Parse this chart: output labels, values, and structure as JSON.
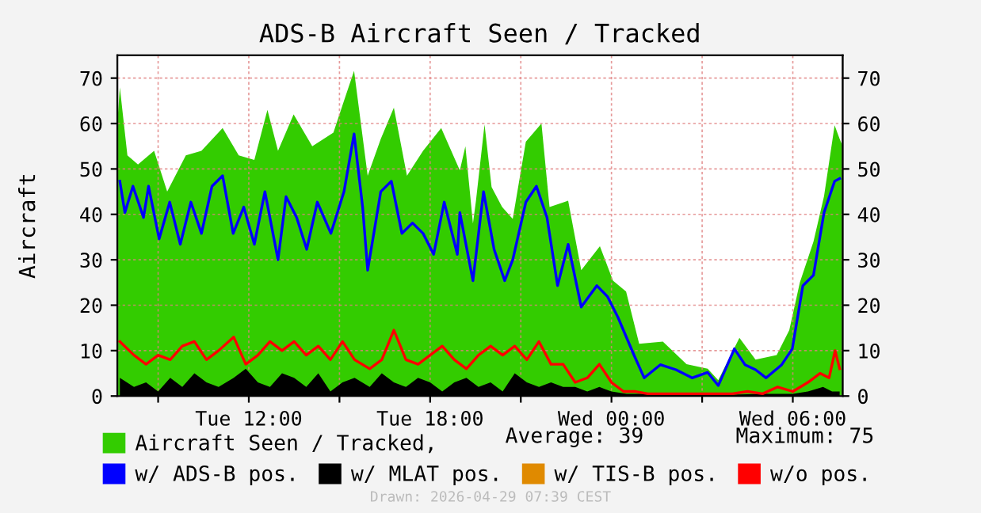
{
  "chart_data": {
    "type": "line",
    "title": "ADS-B Aircraft Seen / Tracked",
    "ylabel": "Aircraft",
    "xlim": [
      "2026-04-28T07:39",
      "2026-04-29T07:39"
    ],
    "ylim": [
      0,
      75
    ],
    "y2lim": [
      0,
      75
    ],
    "xticks": [
      {
        "value": "2026-04-28T09:00",
        "label": null
      },
      {
        "value": "2026-04-28T12:00",
        "label": "Tue 12:00"
      },
      {
        "value": "2026-04-28T15:00",
        "label": null
      },
      {
        "value": "2026-04-28T18:00",
        "label": "Tue 18:00"
      },
      {
        "value": "2026-04-28T21:00",
        "label": null
      },
      {
        "value": "2026-04-29T00:00",
        "label": "Wed 00:00"
      },
      {
        "value": "2026-04-29T03:00",
        "label": null
      },
      {
        "value": "2026-04-29T06:00",
        "label": "Wed 06:00"
      }
    ],
    "yticks": [
      0,
      10,
      20,
      30,
      40,
      50,
      60,
      70
    ],
    "y2ticks": [
      0,
      10,
      20,
      30,
      40,
      50,
      60,
      70
    ],
    "grid": true,
    "legend": "bottom",
    "annotations": [
      "Average: 39",
      "Maximum: 75",
      "Drawn: 2026-04-29 07:39 CEST"
    ],
    "series": [
      {
        "name": "Aircraft Seen / Tracked,",
        "type": "area",
        "color": "#33cc00",
        "x": [
          "2026-04-28T07:39",
          "2026-04-28T07:44",
          "2026-04-28T07:59",
          "2026-04-28T08:20",
          "2026-04-28T08:52",
          "2026-04-28T09:18",
          "2026-04-28T09:55",
          "2026-04-28T10:26",
          "2026-04-28T11:08",
          "2026-04-28T11:40",
          "2026-04-28T12:11",
          "2026-04-28T12:37",
          "2026-04-28T12:58",
          "2026-04-28T13:29",
          "2026-04-28T14:06",
          "2026-04-28T14:48",
          "2026-04-28T15:09",
          "2026-04-28T15:29",
          "2026-04-28T15:56",
          "2026-04-28T16:22",
          "2026-04-28T16:48",
          "2026-04-28T17:14",
          "2026-04-28T17:46",
          "2026-04-28T18:22",
          "2026-04-28T18:59",
          "2026-04-28T19:10",
          "2026-04-28T19:25",
          "2026-04-28T19:31",
          "2026-04-28T19:48",
          "2026-04-28T20:02",
          "2026-04-28T20:23",
          "2026-04-28T20:44",
          "2026-04-28T21:10",
          "2026-04-28T21:41",
          "2026-04-28T21:57",
          "2026-04-28T22:34",
          "2026-04-28T23:00",
          "2026-04-28T23:37",
          "2026-04-29T00:03",
          "2026-04-29T00:29",
          "2026-04-29T00:55",
          "2026-04-29T01:42",
          "2026-04-29T02:29",
          "2026-04-29T03:11",
          "2026-04-29T03:32",
          "2026-04-29T04:14",
          "2026-04-29T04:46",
          "2026-04-29T05:28",
          "2026-04-29T05:53",
          "2026-04-29T06:14",
          "2026-04-29T06:41",
          "2026-04-29T07:02",
          "2026-04-29T07:23",
          "2026-04-29T07:33",
          "2026-04-29T07:39"
        ],
        "values": [
          60,
          68,
          53,
          51,
          54,
          45,
          53,
          54,
          59,
          53,
          52,
          63,
          54,
          62,
          55,
          58,
          65,
          71.6,
          48.5,
          56.6,
          63.5,
          48.5,
          54,
          59,
          49.7,
          55,
          38,
          43,
          59.8,
          46,
          41.6,
          39,
          56,
          60,
          41.6,
          43,
          27.7,
          33,
          25.4,
          23,
          11.5,
          12,
          7,
          6,
          3.5,
          12.8,
          8,
          9,
          14.5,
          25,
          34,
          44,
          59.6,
          56.6,
          55
        ]
      },
      {
        "name": "w/ ADS-B pos.",
        "color": "#0000ff",
        "x": [
          "2026-04-28T07:44",
          "2026-04-28T07:54",
          "2026-04-28T08:10",
          "2026-04-28T08:31",
          "2026-04-28T08:41",
          "2026-04-28T09:02",
          "2026-04-28T09:23",
          "2026-04-28T09:44",
          "2026-04-28T10:05",
          "2026-04-28T10:26",
          "2026-04-28T10:47",
          "2026-04-28T11:08",
          "2026-04-28T11:29",
          "2026-04-28T11:50",
          "2026-04-28T12:11",
          "2026-04-28T12:32",
          "2026-04-28T12:58",
          "2026-04-28T13:14",
          "2026-04-28T13:35",
          "2026-04-28T13:55",
          "2026-04-28T14:16",
          "2026-04-28T14:43",
          "2026-04-28T15:09",
          "2026-04-28T15:29",
          "2026-04-28T15:46",
          "2026-04-28T15:56",
          "2026-04-28T16:22",
          "2026-04-28T16:43",
          "2026-04-28T17:04",
          "2026-04-28T17:25",
          "2026-04-28T17:46",
          "2026-04-28T18:07",
          "2026-04-28T18:28",
          "2026-04-28T18:54",
          "2026-04-28T18:59",
          "2026-04-28T19:25",
          "2026-04-28T19:46",
          "2026-04-28T20:07",
          "2026-04-28T20:28",
          "2026-04-28T20:44",
          "2026-04-28T21:10",
          "2026-04-28T21:31",
          "2026-04-28T21:52",
          "2026-04-28T22:13",
          "2026-04-28T22:34",
          "2026-04-28T23:00",
          "2026-04-28T23:31",
          "2026-04-28T23:52",
          "2026-04-29T00:13",
          "2026-04-29T00:44",
          "2026-04-29T01:05",
          "2026-04-29T01:37",
          "2026-04-29T02:08",
          "2026-04-29T02:40",
          "2026-04-29T03:11",
          "2026-04-29T03:32",
          "2026-04-29T04:04",
          "2026-04-29T04:25",
          "2026-04-29T04:46",
          "2026-04-29T05:07",
          "2026-04-29T05:38",
          "2026-04-29T05:59",
          "2026-04-29T06:20",
          "2026-04-29T06:41",
          "2026-04-29T07:02",
          "2026-04-29T07:23",
          "2026-04-29T07:33"
        ],
        "values": [
          47.3,
          40.4,
          46.2,
          39.3,
          46.2,
          34.6,
          42.7,
          33.4,
          42.7,
          35.8,
          46.2,
          48.5,
          35.8,
          41.6,
          33.4,
          45,
          30,
          43.9,
          39.3,
          32.3,
          42.7,
          35.8,
          45,
          57.7,
          41.6,
          27.7,
          45,
          47.3,
          35.8,
          38.1,
          35.8,
          31.2,
          42.7,
          31.2,
          40.4,
          25.4,
          45,
          32.3,
          25.4,
          30,
          42.7,
          46.2,
          39.3,
          24.3,
          33.4,
          19.6,
          24.3,
          21.9,
          17.3,
          9.2,
          4,
          6.9,
          5.8,
          4,
          5.2,
          2.3,
          10.4,
          6.9,
          5.8,
          4,
          6.9,
          10.4,
          24.3,
          26.6,
          40.4,
          47.3,
          47.9
        ]
      },
      {
        "name": "w/ MLAT pos.",
        "type": "area",
        "color": "#000000",
        "x": [
          "2026-04-28T07:44",
          "2026-04-28T08:12",
          "2026-04-28T08:36",
          "2026-04-28T09:00",
          "2026-04-28T09:24",
          "2026-04-28T09:48",
          "2026-04-28T10:12",
          "2026-04-28T10:36",
          "2026-04-28T11:00",
          "2026-04-28T11:30",
          "2026-04-28T11:54",
          "2026-04-28T12:18",
          "2026-04-28T12:42",
          "2026-04-28T13:06",
          "2026-04-28T13:30",
          "2026-04-28T13:54",
          "2026-04-28T14:18",
          "2026-04-28T14:42",
          "2026-04-28T15:06",
          "2026-04-28T15:30",
          "2026-04-28T16:00",
          "2026-04-28T16:24",
          "2026-04-28T16:48",
          "2026-04-28T17:12",
          "2026-04-28T17:36",
          "2026-04-28T18:00",
          "2026-04-28T18:24",
          "2026-04-28T18:48",
          "2026-04-28T19:12",
          "2026-04-28T19:36",
          "2026-04-28T20:00",
          "2026-04-28T20:24",
          "2026-04-28T20:48",
          "2026-04-28T21:12",
          "2026-04-28T21:36",
          "2026-04-28T22:00",
          "2026-04-28T22:24",
          "2026-04-28T22:48",
          "2026-04-28T23:12",
          "2026-04-28T23:36",
          "2026-04-29T00:00",
          "2026-04-29T00:30",
          "2026-04-29T01:00",
          "2026-04-29T02:00",
          "2026-04-29T03:00",
          "2026-04-29T04:00",
          "2026-04-29T05:00",
          "2026-04-29T06:00",
          "2026-04-29T06:30",
          "2026-04-29T07:00",
          "2026-04-29T07:18",
          "2026-04-29T07:33"
        ],
        "values": [
          4,
          2,
          3,
          1,
          4,
          2,
          5,
          3,
          2,
          4,
          6,
          3,
          2,
          5,
          4,
          2,
          5,
          1,
          3,
          4,
          2,
          5,
          3,
          2,
          4,
          3,
          1,
          3,
          4,
          2,
          3,
          1,
          5,
          3,
          2,
          3,
          2,
          2,
          1,
          2,
          1,
          0.5,
          0.5,
          0.3,
          0.3,
          0.3,
          0.5,
          0.5,
          1,
          2,
          1,
          1
        ]
      },
      {
        "name": "w/ TIS-B pos.",
        "type": "area",
        "color": "#e08a00"
      },
      {
        "name": "w/o pos.",
        "color": "#ff0000",
        "x": [
          "2026-04-28T07:44",
          "2026-04-28T08:12",
          "2026-04-28T08:36",
          "2026-04-28T09:00",
          "2026-04-28T09:24",
          "2026-04-28T09:48",
          "2026-04-28T10:12",
          "2026-04-28T10:36",
          "2026-04-28T11:00",
          "2026-04-28T11:30",
          "2026-04-28T11:54",
          "2026-04-28T12:18",
          "2026-04-28T12:42",
          "2026-04-28T13:06",
          "2026-04-28T13:30",
          "2026-04-28T13:54",
          "2026-04-28T14:18",
          "2026-04-28T14:42",
          "2026-04-28T15:06",
          "2026-04-28T15:30",
          "2026-04-28T16:00",
          "2026-04-28T16:24",
          "2026-04-28T16:48",
          "2026-04-28T17:12",
          "2026-04-28T17:36",
          "2026-04-28T18:00",
          "2026-04-28T18:24",
          "2026-04-28T18:48",
          "2026-04-28T19:12",
          "2026-04-28T19:36",
          "2026-04-28T20:00",
          "2026-04-28T20:24",
          "2026-04-28T20:48",
          "2026-04-28T21:12",
          "2026-04-28T21:36",
          "2026-04-28T22:00",
          "2026-04-28T22:24",
          "2026-04-28T22:48",
          "2026-04-28T23:12",
          "2026-04-28T23:36",
          "2026-04-29T00:00",
          "2026-04-29T00:24",
          "2026-04-29T00:48",
          "2026-04-29T01:12",
          "2026-04-29T02:00",
          "2026-04-29T03:00",
          "2026-04-29T04:00",
          "2026-04-29T04:30",
          "2026-04-29T05:00",
          "2026-04-29T05:30",
          "2026-04-29T06:00",
          "2026-04-29T06:30",
          "2026-04-29T06:54",
          "2026-04-29T07:12",
          "2026-04-29T07:24",
          "2026-04-29T07:33"
        ],
        "values": [
          12,
          9,
          7,
          9,
          8,
          11,
          12,
          8,
          10,
          13,
          7,
          9,
          12,
          10,
          12,
          9,
          11,
          8,
          12,
          8,
          6,
          8,
          14.5,
          8,
          7,
          9,
          11,
          8,
          6,
          9,
          11,
          9,
          11,
          8,
          12,
          7,
          7,
          3,
          4,
          7,
          3,
          1,
          1,
          0.5,
          0.5,
          0.5,
          0.5,
          1,
          0.5,
          2,
          1,
          3,
          5,
          4,
          10,
          6
        ]
      }
    ]
  }
}
